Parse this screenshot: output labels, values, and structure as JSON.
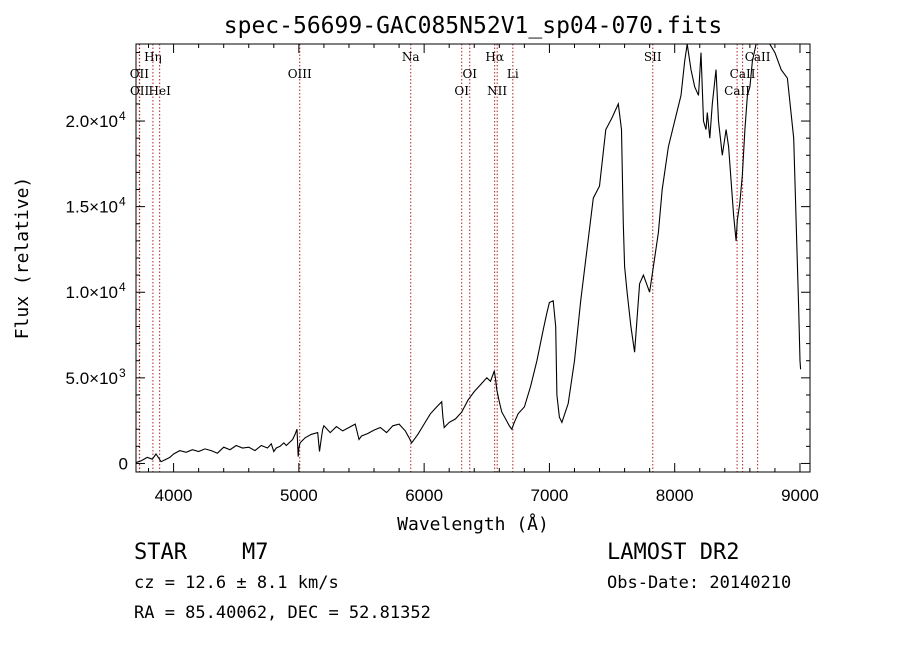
{
  "chart_data": {
    "type": "line",
    "title": "spec-56699-GAC085N52V1_sp04-070.fits",
    "xlabel": "Wavelength (Å)",
    "ylabel": "Flux (relative)",
    "xlim": [
      3700,
      9080
    ],
    "ylim": [
      -500,
      24500
    ],
    "x_ticks": [
      {
        "value": 4000,
        "label": "4000"
      },
      {
        "value": 5000,
        "label": "5000"
      },
      {
        "value": 6000,
        "label": "6000"
      },
      {
        "value": 7000,
        "label": "7000"
      },
      {
        "value": 8000,
        "label": "8000"
      },
      {
        "value": 9000,
        "label": "9000"
      }
    ],
    "y_ticks": [
      {
        "value": 0,
        "mantissa": "0",
        "exp": ""
      },
      {
        "value": 5000,
        "mantissa": "5.0×10",
        "exp": "3"
      },
      {
        "value": 10000,
        "mantissa": "1.0×10",
        "exp": "4"
      },
      {
        "value": 15000,
        "mantissa": "1.5×10",
        "exp": "4"
      },
      {
        "value": 20000,
        "mantissa": "2.0×10",
        "exp": "4"
      }
    ],
    "lines": [
      {
        "name": "Hη",
        "x": 3835,
        "row": 0
      },
      {
        "name": "OII",
        "x": 3727,
        "row": 1
      },
      {
        "name": "OII",
        "x": 3729,
        "row": 2
      },
      {
        "name": "HeI",
        "x": 3889,
        "row": 2
      },
      {
        "name": "OIII",
        "x": 5007,
        "row": 1
      },
      {
        "name": "Na",
        "x": 5893,
        "row": 0
      },
      {
        "name": "OI",
        "x": 6364,
        "row": 1
      },
      {
        "name": "OI",
        "x": 6300,
        "row": 2
      },
      {
        "name": "Hα",
        "x": 6563,
        "row": 0
      },
      {
        "name": "NII",
        "x": 6583,
        "row": 2
      },
      {
        "name": "Li",
        "x": 6708,
        "row": 1
      },
      {
        "name": "SII",
        "x": 7825,
        "row": 0
      },
      {
        "name": "CaII",
        "x": 8662,
        "row": 0
      },
      {
        "name": "CaII",
        "x": 8542,
        "row": 1
      },
      {
        "name": "CaII",
        "x": 8498,
        "row": 2
      }
    ],
    "series": [
      {
        "x": [
          3700,
          3740,
          3790,
          3830,
          3860,
          3900,
          3940,
          3970,
          4000,
          4050,
          4100,
          4150,
          4200,
          4250,
          4300,
          4350,
          4400,
          4450,
          4500,
          4550,
          4600,
          4650,
          4700,
          4750,
          4780,
          4800,
          4820,
          4850,
          4880,
          4900,
          4950,
          4970,
          4985,
          4995,
          5000,
          5010,
          5050,
          5100,
          5150,
          5165,
          5180,
          5190,
          5200,
          5250,
          5300,
          5350,
          5400,
          5450,
          5460,
          5480,
          5500,
          5550,
          5600,
          5650,
          5700,
          5750,
          5800,
          5850,
          5880,
          5900,
          5950,
          6000,
          6050,
          6100,
          6140,
          6150,
          6160,
          6200,
          6250,
          6300,
          6350,
          6400,
          6450,
          6500,
          6530,
          6560,
          6570,
          6580,
          6600,
          6620,
          6650,
          6680,
          6700,
          6720,
          6750,
          6800,
          6850,
          6900,
          6950,
          6980,
          7000,
          7030,
          7050,
          7060,
          7080,
          7100,
          7150,
          7200,
          7250,
          7300,
          7350,
          7400,
          7450,
          7500,
          7550,
          7575,
          7590,
          7600,
          7620,
          7650,
          7680,
          7700,
          7720,
          7750,
          7800,
          7830,
          7870,
          7900,
          7950,
          8000,
          8050,
          8080,
          8100,
          8130,
          8160,
          8190,
          8210,
          8230,
          8250,
          8260,
          8280,
          8300,
          8330,
          8350,
          8380,
          8410,
          8430,
          8450,
          8470,
          8490,
          8500,
          8520,
          8540,
          8560,
          8580,
          8600,
          8620,
          8650,
          8700,
          8750,
          8800,
          8850,
          8900,
          8950,
          8990,
          9000,
          9005
        ],
        "y": [
          50,
          150,
          350,
          250,
          550,
          100,
          250,
          350,
          550,
          750,
          650,
          800,
          700,
          850,
          750,
          600,
          950,
          800,
          1050,
          900,
          950,
          750,
          1050,
          900,
          1150,
          700,
          900,
          1000,
          1200,
          1050,
          1400,
          1700,
          2000,
          400,
          900,
          1200,
          1500,
          1700,
          1800,
          700,
          1500,
          2000,
          2200,
          1800,
          2150,
          1900,
          2100,
          2300,
          2000,
          1400,
          1600,
          1750,
          1950,
          2100,
          1800,
          2200,
          2300,
          1900,
          1500,
          1200,
          1700,
          2300,
          2900,
          3300,
          3600,
          2700,
          2100,
          2400,
          2600,
          3000,
          3700,
          4200,
          4600,
          5000,
          4800,
          5400,
          4900,
          4300,
          3600,
          3000,
          2600,
          2200,
          2000,
          2400,
          2900,
          3300,
          4500,
          6000,
          7800,
          8800,
          9400,
          9500,
          8000,
          4000,
          2700,
          2400,
          3500,
          6000,
          9500,
          12500,
          15500,
          16200,
          19500,
          20200,
          21000,
          19500,
          14000,
          11500,
          10000,
          8000,
          6500,
          8500,
          10500,
          11000,
          10000,
          11500,
          13500,
          16000,
          18500,
          20000,
          21500,
          23500,
          24500,
          23000,
          22000,
          21500,
          24000,
          20000,
          19500,
          20500,
          19000,
          21000,
          23000,
          20000,
          18000,
          19500,
          18500,
          16500,
          14500,
          13000,
          14200,
          15200,
          16800,
          19500,
          21500,
          22000,
          23500,
          24500,
          24800,
          24600,
          24000,
          23000,
          22500,
          19000,
          9000,
          6000,
          5500
        ]
      }
    ]
  },
  "info": {
    "object_class": "STAR",
    "subclass": "M7",
    "survey": "LAMOST DR2",
    "redshift": "cz = 12.6 ± 8.1 km/s",
    "obs_date": "Obs-Date: 20140210",
    "coords": "RA =  85.40062, DEC =  52.81352"
  }
}
